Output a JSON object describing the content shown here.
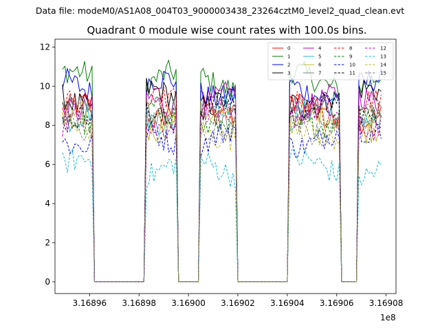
{
  "figure": {
    "suptitle": "Data file: modeM0/AS1A08_004T03_9000003438_23264cztM0_level2_quad_clean.evt",
    "offset_label": "1e8"
  },
  "chart_data": {
    "type": "line",
    "title": "Quadrant 0 module wise count rates with 100.0s bins.",
    "xlabel": "",
    "ylabel": "",
    "xlim": [
      316894600,
      316908400
    ],
    "ylim": [
      -0.6,
      12.4
    ],
    "x_offset": 100000000,
    "x_ticks": [
      316896000,
      316898000,
      316900000,
      316902000,
      316904000,
      316906000,
      316908000
    ],
    "x_tick_labels": [
      "3.16896",
      "3.16898",
      "3.16900",
      "3.16902",
      "3.16904",
      "3.16906",
      "3.16908"
    ],
    "y_ticks": [
      0,
      2,
      4,
      6,
      8,
      10,
      12
    ],
    "y_tick_labels": [
      "0",
      "2",
      "4",
      "6",
      "8",
      "10",
      "12"
    ],
    "legend_position": "top-right",
    "x_start": 316894900,
    "bin_width": 100,
    "num_bins": 130,
    "on_intervals": [
      [
        316894900,
        316896100
      ],
      [
        316898300,
        316899500
      ],
      [
        316900500,
        316901900
      ],
      [
        316904100,
        316906100
      ],
      [
        316906900,
        316907800
      ]
    ],
    "series": [
      {
        "name": "0",
        "color": "#ff0000",
        "dash": "solid",
        "mean": 8.7
      },
      {
        "name": "1",
        "color": "#008000",
        "dash": "solid",
        "mean": 10.3
      },
      {
        "name": "2",
        "color": "#0000ff",
        "dash": "solid",
        "mean": 9.9
      },
      {
        "name": "3",
        "color": "#000000",
        "dash": "solid",
        "mean": 9.4
      },
      {
        "name": "4",
        "color": "#bf00bf",
        "dash": "solid",
        "mean": 9.2
      },
      {
        "name": "5",
        "color": "#17becf",
        "dash": "solid",
        "mean": 8.6
      },
      {
        "name": "6",
        "color": "#bcbd22",
        "dash": "solid",
        "mean": 8.2
      },
      {
        "name": "7",
        "color": "#7f7f7f",
        "dash": "solid",
        "mean": 8.5
      },
      {
        "name": "8",
        "color": "#ff0000",
        "dash": "dashed",
        "mean": 8.9
      },
      {
        "name": "9",
        "color": "#008000",
        "dash": "dashed",
        "mean": 8.4
      },
      {
        "name": "10",
        "color": "#0000ff",
        "dash": "dashed",
        "mean": 7.4
      },
      {
        "name": "11",
        "color": "#000000",
        "dash": "dashed",
        "mean": 8.7
      },
      {
        "name": "12",
        "color": "#bf00bf",
        "dash": "dashed",
        "mean": 8.3
      },
      {
        "name": "13",
        "color": "#17becf",
        "dash": "dashed",
        "mean": 5.8
      },
      {
        "name": "14",
        "color": "#bcbd22",
        "dash": "dashed",
        "mean": 7.8
      },
      {
        "name": "15",
        "color": "#7f7f7f",
        "dash": "dashed",
        "mean": 8.0
      }
    ]
  }
}
